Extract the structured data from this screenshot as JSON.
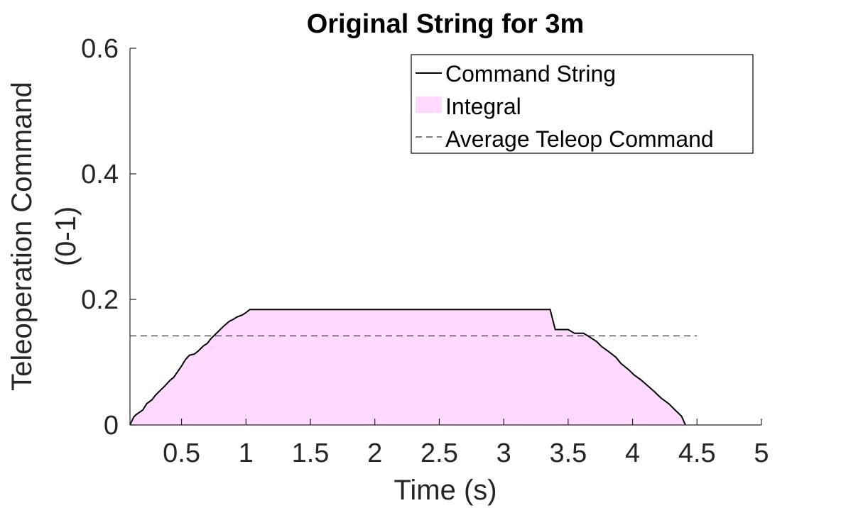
{
  "chart_data": {
    "type": "area",
    "title": "Original String for 3m",
    "xlabel": "Time (s)",
    "ylabel_lines": [
      "Teleoperation Command",
      "(0-1)"
    ],
    "xlim": [
      0.1,
      5
    ],
    "ylim": [
      0,
      0.6
    ],
    "xticks": [
      0.5,
      1,
      1.5,
      2,
      2.5,
      3,
      3.5,
      4,
      4.5,
      5
    ],
    "xtick_labels": [
      "0.5",
      "1",
      "1.5",
      "2",
      "2.5",
      "3",
      "3.5",
      "4",
      "4.5",
      "5"
    ],
    "yticks": [
      0,
      0.2,
      0.4,
      0.6
    ],
    "ytick_labels": [
      "0",
      "0.2",
      "0.4",
      "0.6"
    ],
    "grid": false,
    "legend_position": "top-right",
    "series": [
      {
        "name": "Command String",
        "kind": "line",
        "color": "#000000",
        "x": [
          0.1,
          0.13,
          0.15,
          0.2,
          0.23,
          0.27,
          0.3,
          0.34,
          0.37,
          0.41,
          0.44,
          0.47,
          0.5,
          0.53,
          0.56,
          0.6,
          0.63,
          0.67,
          0.7,
          0.73,
          0.77,
          0.8,
          0.83,
          0.87,
          0.9,
          0.93,
          0.97,
          1.0,
          1.03,
          1.06,
          1.2,
          1.5,
          2.0,
          2.5,
          3.0,
          3.25,
          3.36,
          3.4,
          3.48,
          3.5,
          3.55,
          3.62,
          3.66,
          3.72,
          3.76,
          3.82,
          3.87,
          3.91,
          3.97,
          4.01,
          4.07,
          4.12,
          4.17,
          4.22,
          4.28,
          4.33,
          4.38,
          4.41
        ],
        "y": [
          0.0,
          0.013,
          0.017,
          0.024,
          0.034,
          0.04,
          0.048,
          0.056,
          0.062,
          0.071,
          0.076,
          0.085,
          0.094,
          0.104,
          0.111,
          0.113,
          0.118,
          0.126,
          0.13,
          0.138,
          0.146,
          0.152,
          0.158,
          0.165,
          0.168,
          0.172,
          0.175,
          0.179,
          0.184,
          0.184,
          0.184,
          0.184,
          0.184,
          0.184,
          0.184,
          0.184,
          0.184,
          0.152,
          0.152,
          0.152,
          0.146,
          0.146,
          0.141,
          0.133,
          0.125,
          0.116,
          0.108,
          0.098,
          0.088,
          0.08,
          0.071,
          0.062,
          0.053,
          0.043,
          0.034,
          0.024,
          0.014,
          0.0
        ]
      },
      {
        "name": "Integral",
        "kind": "fill",
        "color": "#ffd9ff"
      },
      {
        "name": "Average Teleop Command",
        "kind": "dashed-line",
        "color": "#555555",
        "x": [
          0.1,
          4.5
        ],
        "y": [
          0.142,
          0.142
        ]
      }
    ]
  }
}
